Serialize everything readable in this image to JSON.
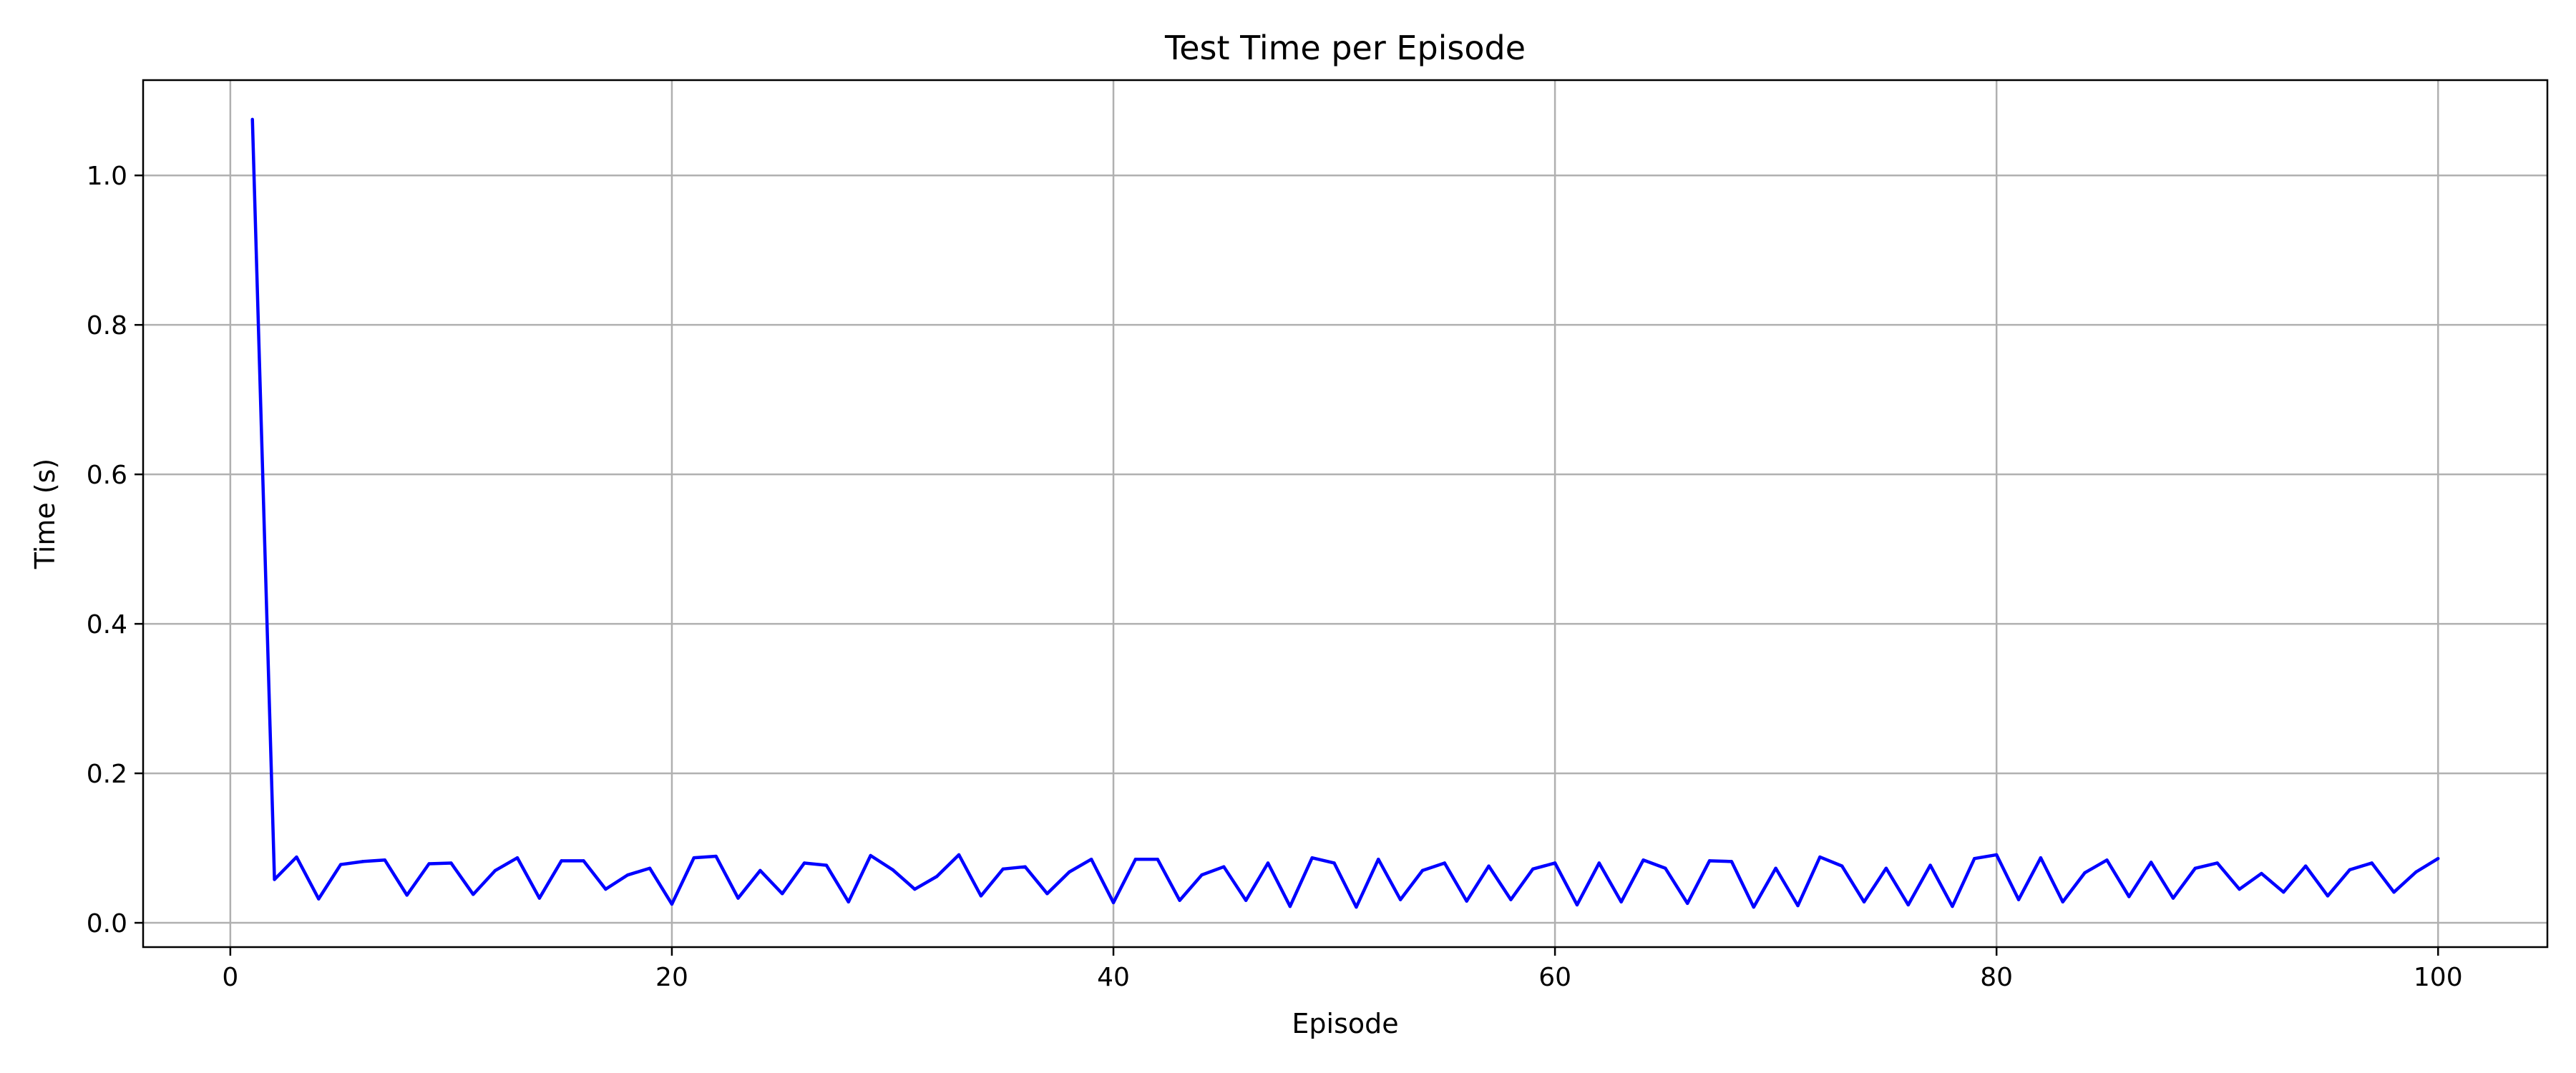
{
  "chart_data": {
    "type": "line",
    "title": "Test Time per Episode",
    "xlabel": "Episode",
    "ylabel": "Time (s)",
    "xlim": [
      -3.95,
      104.95
    ],
    "ylim": [
      -0.0325,
      1.1275
    ],
    "xticks": [
      0,
      20,
      40,
      60,
      80,
      100
    ],
    "xtick_labels": [
      "0",
      "20",
      "40",
      "60",
      "80",
      "100"
    ],
    "yticks": [
      0.0,
      0.2,
      0.4,
      0.6,
      0.8,
      1.0
    ],
    "ytick_labels": [
      "0.0",
      "0.2",
      "0.4",
      "0.6",
      "0.8",
      "1.0"
    ],
    "grid": true,
    "series": [
      {
        "name": "Test Time",
        "color": "#0000ff",
        "x": [
          1,
          2,
          3,
          4,
          5,
          6,
          7,
          8,
          9,
          10,
          11,
          12,
          13,
          14,
          15,
          16,
          17,
          18,
          19,
          20,
          21,
          22,
          23,
          24,
          25,
          26,
          27,
          28,
          29,
          30,
          31,
          32,
          33,
          34,
          35,
          36,
          37,
          38,
          39,
          40,
          41,
          42,
          43,
          44,
          45,
          46,
          47,
          48,
          49,
          50,
          51,
          52,
          53,
          54,
          55,
          56,
          57,
          58,
          59,
          60,
          61,
          62,
          63,
          64,
          65,
          66,
          67,
          68,
          69,
          70,
          71,
          72,
          73,
          74,
          75,
          76,
          77,
          78,
          79,
          80,
          81,
          82,
          83,
          84,
          85,
          86,
          87,
          88,
          89,
          90,
          91,
          92,
          93,
          94,
          95,
          96,
          97,
          98,
          99,
          100
        ],
        "values": [
          1.075,
          0.058,
          0.088,
          0.032,
          0.078,
          0.082,
          0.084,
          0.037,
          0.079,
          0.08,
          0.038,
          0.07,
          0.087,
          0.033,
          0.083,
          0.083,
          0.045,
          0.064,
          0.073,
          0.025,
          0.087,
          0.089,
          0.033,
          0.07,
          0.039,
          0.08,
          0.077,
          0.028,
          0.09,
          0.071,
          0.045,
          0.062,
          0.091,
          0.036,
          0.072,
          0.075,
          0.039,
          0.068,
          0.085,
          0.027,
          0.085,
          0.085,
          0.03,
          0.064,
          0.075,
          0.03,
          0.08,
          0.022,
          0.087,
          0.08,
          0.021,
          0.085,
          0.031,
          0.07,
          0.08,
          0.029,
          0.076,
          0.031,
          0.072,
          0.08,
          0.024,
          0.08,
          0.028,
          0.084,
          0.073,
          0.026,
          0.083,
          0.082,
          0.021,
          0.073,
          0.023,
          0.088,
          0.076,
          0.028,
          0.073,
          0.024,
          0.077,
          0.022,
          0.086,
          0.091,
          0.031,
          0.087,
          0.028,
          0.067,
          0.084,
          0.035,
          0.081,
          0.033,
          0.073,
          0.08,
          0.045,
          0.066,
          0.041,
          0.076,
          0.036,
          0.071,
          0.08,
          0.041,
          0.068,
          0.086
        ]
      }
    ]
  }
}
